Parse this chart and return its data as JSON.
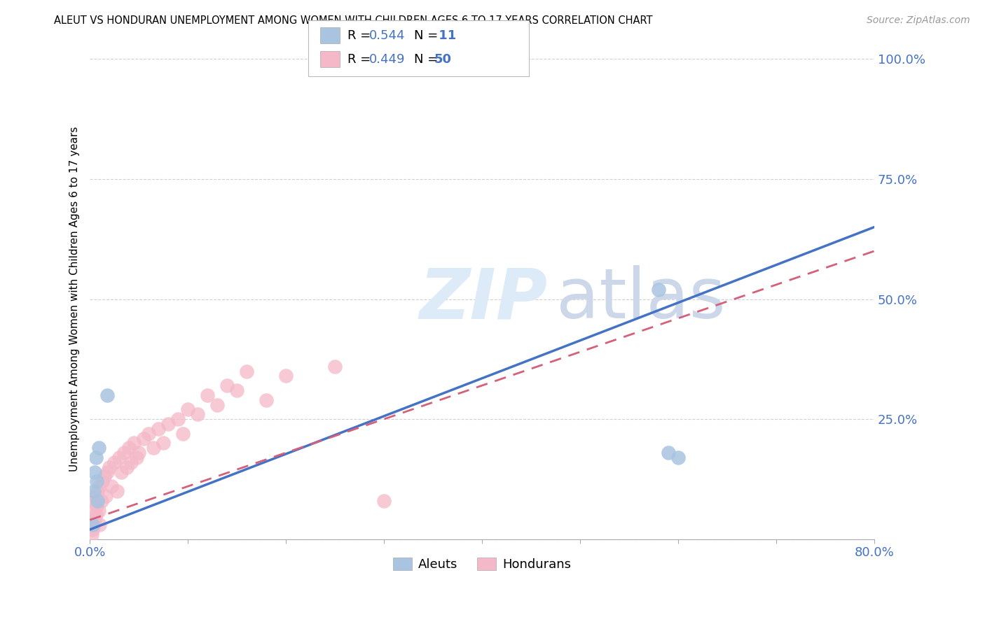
{
  "title": "ALEUT VS HONDURAN UNEMPLOYMENT AMONG WOMEN WITH CHILDREN AGES 6 TO 17 YEARS CORRELATION CHART",
  "source": "Source: ZipAtlas.com",
  "ylabel": "Unemployment Among Women with Children Ages 6 to 17 years",
  "xlim": [
    0.0,
    0.8
  ],
  "ylim": [
    0.0,
    1.0
  ],
  "aleut_color": "#a8c4e0",
  "honduran_color": "#f4b8c8",
  "aleut_line_color": "#4472c4",
  "honduran_line_color": "#d4607a",
  "tick_color": "#4472c4",
  "grid_color": "#cccccc",
  "aleut_x": [
    0.003,
    0.004,
    0.005,
    0.006,
    0.007,
    0.008,
    0.009,
    0.018,
    0.58,
    0.59,
    0.6
  ],
  "aleut_y": [
    0.03,
    0.1,
    0.14,
    0.17,
    0.12,
    0.08,
    0.19,
    0.3,
    0.52,
    0.18,
    0.17
  ],
  "honduran_x": [
    0.002,
    0.003,
    0.004,
    0.004,
    0.005,
    0.005,
    0.006,
    0.006,
    0.007,
    0.008,
    0.009,
    0.01,
    0.01,
    0.012,
    0.013,
    0.015,
    0.016,
    0.018,
    0.02,
    0.022,
    0.025,
    0.028,
    0.03,
    0.032,
    0.035,
    0.038,
    0.04,
    0.042,
    0.045,
    0.048,
    0.05,
    0.055,
    0.06,
    0.065,
    0.07,
    0.075,
    0.08,
    0.09,
    0.095,
    0.1,
    0.11,
    0.12,
    0.13,
    0.14,
    0.15,
    0.16,
    0.18,
    0.2,
    0.25,
    0.3
  ],
  "honduran_y": [
    0.01,
    0.02,
    0.03,
    0.06,
    0.04,
    0.08,
    0.05,
    0.09,
    0.07,
    0.1,
    0.06,
    0.11,
    0.03,
    0.08,
    0.12,
    0.13,
    0.09,
    0.14,
    0.15,
    0.11,
    0.16,
    0.1,
    0.17,
    0.14,
    0.18,
    0.15,
    0.19,
    0.16,
    0.2,
    0.17,
    0.18,
    0.21,
    0.22,
    0.19,
    0.23,
    0.2,
    0.24,
    0.25,
    0.22,
    0.27,
    0.26,
    0.3,
    0.28,
    0.32,
    0.31,
    0.35,
    0.29,
    0.34,
    0.36,
    0.08
  ],
  "aleut_line_x0": 0.0,
  "aleut_line_y0": 0.02,
  "aleut_line_x1": 0.8,
  "aleut_line_y1": 0.65,
  "hond_line_x0": 0.0,
  "hond_line_y0": 0.04,
  "hond_line_x1": 0.8,
  "hond_line_y1": 0.6
}
